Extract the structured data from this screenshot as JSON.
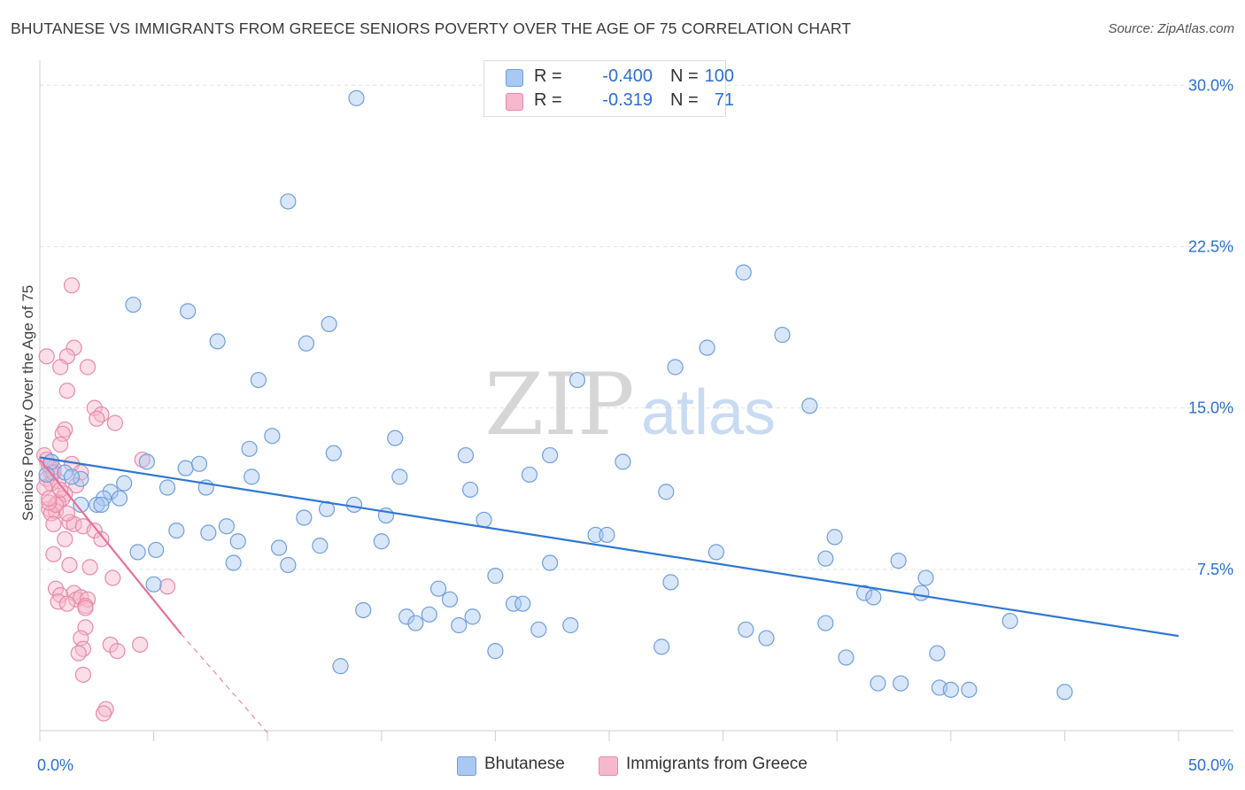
{
  "title": "BHUTANESE VS IMMIGRANTS FROM GREECE SENIORS POVERTY OVER THE AGE OF 75 CORRELATION CHART",
  "source": "Source: ZipAtlas.com",
  "watermark": {
    "zip": "ZIP",
    "atlas": "atlas"
  },
  "colors": {
    "blue_fill": "#a9c8f2",
    "blue_stroke": "#6f9fdc",
    "blue_line": "#2f77d0",
    "pink_fill": "#f6b8cc",
    "pink_stroke": "#e88aa8",
    "pink_line": "#e8709a",
    "axis_text": "#2b6fd6",
    "grid": "#e3e3e3"
  },
  "legend": {
    "rows": [
      {
        "r_label": "R =",
        "r_value": "-0.400",
        "n_label": "N =",
        "n_value": "100",
        "color": "#a9c8f2"
      },
      {
        "r_label": "R =",
        "r_value": "-0.319",
        "n_label": "N =",
        "n_value": "71",
        "color": "#f6b8cc"
      }
    ]
  },
  "bottom_legend": [
    {
      "label": "Bhutanese",
      "color": "#a9c8f2"
    },
    {
      "label": "Immigrants from Greece",
      "color": "#f6b8cc"
    }
  ],
  "chart_data": {
    "type": "scatter",
    "ylabel": "Seniors Poverty Over the Age of 75",
    "xlim": [
      0,
      50
    ],
    "ylim": [
      0,
      30
    ],
    "x_tick_labels": [
      {
        "value": 0,
        "label": "0.0%"
      },
      {
        "value": 50,
        "label": "50.0%"
      }
    ],
    "y_tick_labels": [
      {
        "value": 7.5,
        "label": "7.5%"
      },
      {
        "value": 15,
        "label": "15.0%"
      },
      {
        "value": 22.5,
        "label": "22.5%"
      },
      {
        "value": 30,
        "label": "30.0%"
      }
    ],
    "series": [
      {
        "name": "Bhutanese",
        "trendline": {
          "x": [
            0,
            50
          ],
          "y": [
            12.7,
            4.4
          ]
        },
        "points": [
          [
            13.9,
            29.4
          ],
          [
            10.9,
            24.6
          ],
          [
            30.9,
            21.3
          ],
          [
            4.1,
            19.8
          ],
          [
            6.5,
            19.5
          ],
          [
            12.7,
            18.9
          ],
          [
            32.6,
            18.4
          ],
          [
            7.8,
            18.1
          ],
          [
            11.7,
            18.0
          ],
          [
            29.3,
            17.8
          ],
          [
            27.9,
            16.9
          ],
          [
            9.6,
            16.3
          ],
          [
            23.6,
            16.3
          ],
          [
            33.8,
            15.1
          ],
          [
            10.2,
            13.7
          ],
          [
            15.6,
            13.6
          ],
          [
            9.2,
            13.1
          ],
          [
            12.9,
            12.9
          ],
          [
            18.7,
            12.8
          ],
          [
            22.4,
            12.8
          ],
          [
            25.6,
            12.5
          ],
          [
            4.7,
            12.5
          ],
          [
            6.4,
            12.2
          ],
          [
            7.0,
            12.4
          ],
          [
            0.5,
            12.5
          ],
          [
            1.1,
            12.0
          ],
          [
            1.8,
            11.7
          ],
          [
            9.3,
            11.8
          ],
          [
            15.8,
            11.8
          ],
          [
            21.5,
            11.9
          ],
          [
            3.7,
            11.5
          ],
          [
            5.6,
            11.3
          ],
          [
            7.3,
            11.3
          ],
          [
            18.9,
            11.2
          ],
          [
            27.5,
            11.1
          ],
          [
            3.1,
            11.1
          ],
          [
            2.8,
            10.8
          ],
          [
            3.5,
            10.8
          ],
          [
            2.5,
            10.5
          ],
          [
            1.8,
            10.5
          ],
          [
            2.7,
            10.5
          ],
          [
            12.6,
            10.3
          ],
          [
            13.8,
            10.5
          ],
          [
            11.6,
            9.9
          ],
          [
            15.2,
            10.0
          ],
          [
            19.5,
            9.8
          ],
          [
            8.2,
            9.5
          ],
          [
            6.0,
            9.3
          ],
          [
            7.4,
            9.2
          ],
          [
            24.4,
            9.1
          ],
          [
            24.9,
            9.1
          ],
          [
            34.9,
            9.0
          ],
          [
            8.7,
            8.8
          ],
          [
            15.0,
            8.8
          ],
          [
            12.3,
            8.6
          ],
          [
            10.5,
            8.5
          ],
          [
            5.1,
            8.4
          ],
          [
            4.3,
            8.3
          ],
          [
            29.7,
            8.3
          ],
          [
            34.5,
            8.0
          ],
          [
            37.7,
            7.9
          ],
          [
            8.5,
            7.8
          ],
          [
            10.9,
            7.7
          ],
          [
            22.4,
            7.8
          ],
          [
            20.0,
            7.2
          ],
          [
            38.9,
            7.1
          ],
          [
            27.7,
            6.9
          ],
          [
            5.0,
            6.8
          ],
          [
            17.5,
            6.6
          ],
          [
            18.0,
            6.1
          ],
          [
            36.2,
            6.4
          ],
          [
            36.6,
            6.2
          ],
          [
            38.7,
            6.4
          ],
          [
            20.8,
            5.9
          ],
          [
            21.2,
            5.9
          ],
          [
            14.2,
            5.6
          ],
          [
            16.1,
            5.3
          ],
          [
            17.1,
            5.4
          ],
          [
            16.5,
            5.0
          ],
          [
            18.4,
            4.9
          ],
          [
            19.0,
            5.3
          ],
          [
            42.6,
            5.1
          ],
          [
            21.9,
            4.7
          ],
          [
            23.3,
            4.9
          ],
          [
            34.5,
            5.0
          ],
          [
            31.0,
            4.7
          ],
          [
            31.9,
            4.3
          ],
          [
            27.3,
            3.9
          ],
          [
            20.0,
            3.7
          ],
          [
            35.4,
            3.4
          ],
          [
            39.4,
            3.6
          ],
          [
            13.2,
            3.0
          ],
          [
            36.8,
            2.2
          ],
          [
            37.8,
            2.2
          ],
          [
            39.5,
            2.0
          ],
          [
            40.0,
            1.9
          ],
          [
            40.8,
            1.9
          ],
          [
            45.0,
            1.8
          ],
          [
            0.3,
            11.9
          ],
          [
            1.4,
            11.8
          ]
        ]
      },
      {
        "name": "Immigrants from Greece",
        "trendline": {
          "x": [
            0,
            6.2
          ],
          "y": [
            12.6,
            4.5
          ]
        },
        "trendline_dashed": {
          "x": [
            6.2,
            10
          ],
          "y": [
            4.5,
            -0.1
          ]
        },
        "points": [
          [
            1.4,
            20.7
          ],
          [
            1.5,
            17.8
          ],
          [
            0.3,
            17.4
          ],
          [
            1.2,
            17.4
          ],
          [
            0.9,
            16.9
          ],
          [
            2.1,
            16.9
          ],
          [
            1.2,
            15.8
          ],
          [
            2.4,
            15.0
          ],
          [
            2.7,
            14.7
          ],
          [
            2.5,
            14.5
          ],
          [
            3.3,
            14.3
          ],
          [
            1.1,
            14.0
          ],
          [
            1.0,
            13.8
          ],
          [
            0.9,
            13.3
          ],
          [
            0.2,
            12.8
          ],
          [
            4.5,
            12.6
          ],
          [
            0.6,
            12.2
          ],
          [
            1.4,
            12.4
          ],
          [
            0.4,
            12.3
          ],
          [
            0.5,
            12.0
          ],
          [
            1.8,
            12.0
          ],
          [
            0.8,
            11.6
          ],
          [
            0.3,
            11.7
          ],
          [
            0.5,
            11.5
          ],
          [
            1.6,
            11.4
          ],
          [
            1.1,
            11.0
          ],
          [
            1.0,
            10.8
          ],
          [
            0.8,
            10.6
          ],
          [
            0.4,
            10.3
          ],
          [
            0.7,
            10.2
          ],
          [
            0.5,
            10.1
          ],
          [
            1.3,
            9.7
          ],
          [
            1.5,
            9.6
          ],
          [
            0.6,
            9.6
          ],
          [
            0.7,
            10.5
          ],
          [
            1.9,
            9.5
          ],
          [
            2.4,
            9.3
          ],
          [
            2.7,
            8.9
          ],
          [
            1.1,
            8.9
          ],
          [
            0.6,
            8.2
          ],
          [
            1.3,
            7.7
          ],
          [
            2.2,
            7.6
          ],
          [
            3.2,
            7.1
          ],
          [
            0.7,
            6.6
          ],
          [
            1.5,
            6.4
          ],
          [
            5.6,
            6.7
          ],
          [
            0.9,
            6.3
          ],
          [
            1.6,
            6.1
          ],
          [
            1.8,
            6.2
          ],
          [
            2.1,
            6.1
          ],
          [
            0.8,
            6.0
          ],
          [
            2.0,
            5.8
          ],
          [
            1.2,
            5.9
          ],
          [
            2.0,
            5.7
          ],
          [
            2.0,
            4.8
          ],
          [
            1.8,
            4.3
          ],
          [
            3.1,
            4.0
          ],
          [
            4.4,
            4.0
          ],
          [
            1.9,
            3.8
          ],
          [
            3.4,
            3.7
          ],
          [
            1.7,
            3.6
          ],
          [
            1.9,
            2.6
          ],
          [
            2.9,
            1.0
          ],
          [
            2.8,
            0.8
          ],
          [
            0.6,
            12.0
          ],
          [
            0.9,
            11.2
          ],
          [
            0.4,
            10.6
          ],
          [
            1.2,
            10.1
          ],
          [
            0.3,
            12.6
          ],
          [
            0.2,
            11.3
          ],
          [
            0.4,
            10.8
          ]
        ]
      }
    ]
  }
}
